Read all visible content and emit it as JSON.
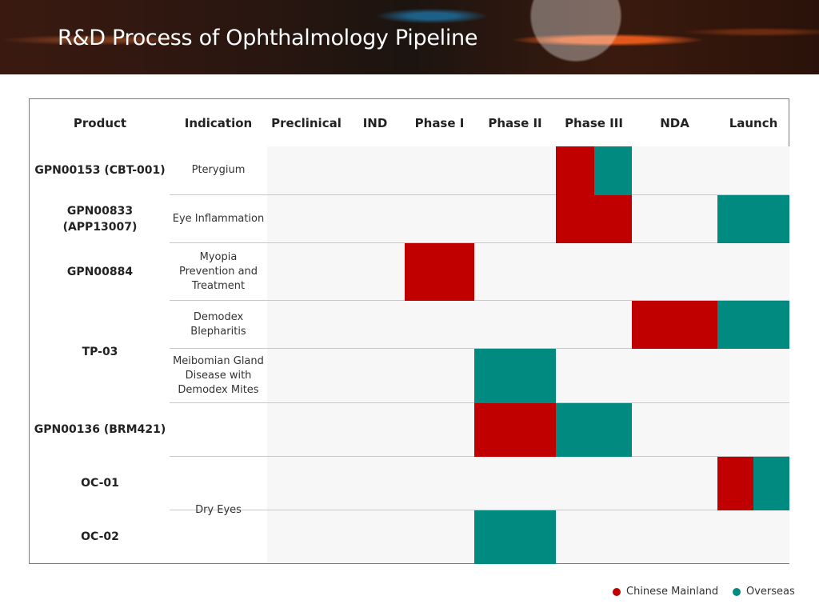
{
  "page": {
    "title": "R&D Process of Ophthalmology Pipeline"
  },
  "chart_data": {
    "type": "table",
    "columns": [
      "Product",
      "Indication",
      "Preclinical",
      "IND",
      "Phase I",
      "Phase II",
      "Phase III",
      "NDA",
      "Launch"
    ],
    "rows": [
      {
        "product": "GPN00153 (CBT-001)",
        "indication": "Pterygium",
        "chinese_mainland_stage": "Phase III",
        "overseas_stage": "Phase III"
      },
      {
        "product": "GPN00833 (APP13007)",
        "indication": "Eye Inflammation",
        "chinese_mainland_stage": "Phase III",
        "overseas_stage": "Launch"
      },
      {
        "product": "GPN00884",
        "indication": "Myopia Prevention and Treatment",
        "chinese_mainland_stage": "Phase I",
        "overseas_stage": ""
      },
      {
        "product": "TP-03",
        "indication": "Demodex Blepharitis",
        "chinese_mainland_stage": "NDA",
        "overseas_stage": "Launch"
      },
      {
        "product": "TP-03",
        "indication": "Meibomian Gland Disease with Demodex Mites",
        "chinese_mainland_stage": "",
        "overseas_stage": "Phase II"
      },
      {
        "product": "GPN00136 (BRM421)",
        "indication": "",
        "chinese_mainland_stage": "Phase II",
        "overseas_stage": "Phase III"
      },
      {
        "product": "OC-01",
        "indication": "Dry Eyes",
        "chinese_mainland_stage": "Launch",
        "overseas_stage": "Launch"
      },
      {
        "product": "OC-02",
        "indication": "Dry Eyes",
        "chinese_mainland_stage": "",
        "overseas_stage": "Phase II"
      }
    ],
    "legend": [
      {
        "label": "Chinese Mainland",
        "color": "#c00000"
      },
      {
        "label": "Overseas",
        "color": "#008a80"
      }
    ],
    "legend_position": "bottom-right"
  }
}
